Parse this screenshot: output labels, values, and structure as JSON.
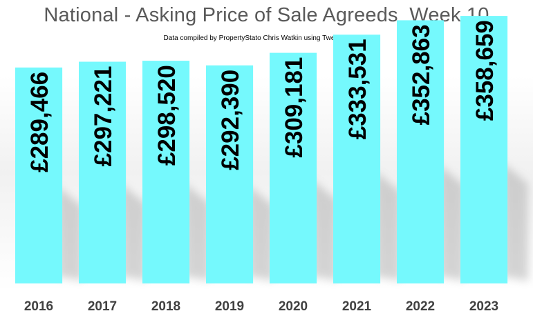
{
  "chart_data": {
    "type": "bar",
    "title": "National - Asking Price of Sale Agreeds  Week 10",
    "subtitle": "Data compiled by PropertyStato Chris Watkin using TwentyEA Data",
    "categories": [
      "2016",
      "2017",
      "2018",
      "2019",
      "2020",
      "2021",
      "2022",
      "2023"
    ],
    "values": [
      289466,
      297221,
      298520,
      292390,
      309181,
      333531,
      352863,
      358659
    ],
    "data_labels": [
      "£289,466",
      "£297,221",
      "£298,520",
      "£292,390",
      "£309,181",
      "£333,531",
      "£352,863",
      "£358,659"
    ],
    "xlabel": "",
    "ylabel": "",
    "ylim": [
      0,
      380000
    ],
    "grid": false,
    "legend": "none",
    "colors": {
      "bar": "#75F9FD",
      "label": "#000000",
      "title": "#595959",
      "tick": "#404040"
    }
  }
}
